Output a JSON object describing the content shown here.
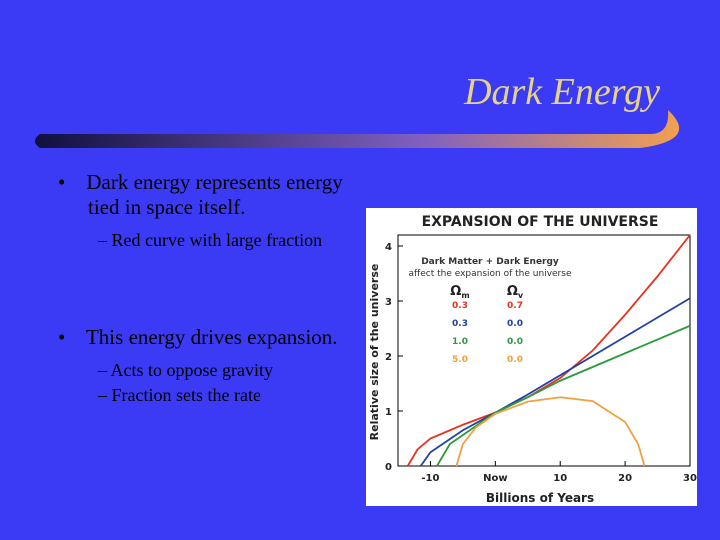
{
  "slide": {
    "title": "Dark Energy",
    "bullets": [
      {
        "text": "Dark energy represents energy tied in space itself.",
        "subs": [
          "Red curve with large fraction"
        ]
      },
      {
        "text": "This energy drives expansion.",
        "subs": [
          "Acts to oppose gravity",
          "Fraction sets the rate"
        ]
      }
    ]
  },
  "chart_data": {
    "type": "line",
    "title": "EXPANSION OF THE UNIVERSE",
    "annotations": [
      "Dark Matter + Dark Energy",
      "affect the expansion of the universe"
    ],
    "param_headers": [
      {
        "symbol": "Ω",
        "sub": "m"
      },
      {
        "symbol": "Ω",
        "sub": "v"
      }
    ],
    "x_label": "Billions of Years",
    "y_label": "Relative size of the universe",
    "xlim": [
      -15,
      30
    ],
    "ylim": [
      0,
      4.2
    ],
    "xticks": [
      -10,
      {
        "value": 0,
        "label": "Now"
      },
      10,
      20,
      30
    ],
    "yticks": [
      0,
      1,
      2,
      3,
      4
    ],
    "series": [
      {
        "color": "#e8321e",
        "params": [
          "0.3",
          "0.7"
        ],
        "x": [
          -13.5,
          -12,
          -10,
          -5,
          0,
          5,
          10,
          15,
          20,
          25,
          30
        ],
        "values": [
          0,
          0.3,
          0.5,
          0.75,
          0.97,
          1.25,
          1.6,
          2.1,
          2.75,
          3.45,
          4.2
        ]
      },
      {
        "color": "#2040a8",
        "params": [
          "0.3",
          "0.0"
        ],
        "x": [
          -11.5,
          -10,
          -5,
          0,
          5,
          10,
          20,
          30
        ],
        "values": [
          0,
          0.25,
          0.65,
          0.97,
          1.3,
          1.65,
          2.35,
          3.05
        ]
      },
      {
        "color": "#2a9a3a",
        "params": [
          "1.0",
          "0.0"
        ],
        "x": [
          -9,
          -7,
          0,
          5,
          10,
          20,
          30
        ],
        "values": [
          0,
          0.4,
          0.97,
          1.25,
          1.55,
          2.05,
          2.55
        ]
      },
      {
        "color": "#f0a040",
        "params": [
          "5.0",
          "0.0"
        ],
        "x": [
          -6,
          -5,
          -3,
          0,
          5,
          10,
          15,
          20,
          22,
          23
        ],
        "values": [
          0,
          0.4,
          0.7,
          0.95,
          1.17,
          1.25,
          1.18,
          0.8,
          0.4,
          0
        ]
      }
    ]
  }
}
